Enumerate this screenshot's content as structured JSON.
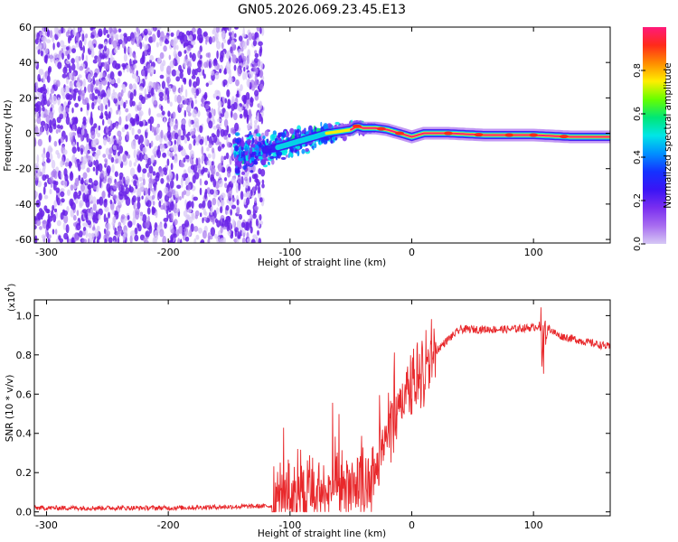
{
  "title": "GN05.2026.069.23.45.E13",
  "colors": {
    "snr_line": "#e8282b",
    "spectro_points": "#5a17e6",
    "colormap": [
      "#d6c8f5",
      "#a86df0",
      "#7a2ef0",
      "#3a14f5",
      "#1432ff",
      "#0090ff",
      "#00e6e6",
      "#00e676",
      "#66ff00",
      "#ffee00",
      "#ff8c00",
      "#ff2a1a",
      "#ff1a7a"
    ]
  },
  "chart_data": [
    {
      "type": "heatmap",
      "title": "GN05.2026.069.23.45.E13",
      "xlabel": "Height of straight line (km)",
      "ylabel": "Frequency (Hz)",
      "xlim": [
        -310,
        163
      ],
      "ylim": [
        -62,
        60
      ],
      "xticks": [
        -300,
        -200,
        -100,
        0,
        100
      ],
      "xtick_labels": [
        "-300",
        "-200",
        "-100",
        "0",
        "100"
      ],
      "yticks": [
        60,
        40,
        20,
        0,
        -20,
        -40,
        -60
      ],
      "ytick_labels": [
        "60",
        "40",
        "20",
        "0",
        "-20",
        "-40",
        "-60"
      ],
      "noise_region_x": [
        -310,
        -122
      ],
      "signal_trace": [
        {
          "x": -145,
          "f": -12
        },
        {
          "x": -125,
          "f": -10
        },
        {
          "x": -110,
          "f": -8
        },
        {
          "x": -100,
          "f": -6
        },
        {
          "x": -90,
          "f": -4
        },
        {
          "x": -80,
          "f": -2
        },
        {
          "x": -70,
          "f": 0
        },
        {
          "x": -60,
          "f": 1
        },
        {
          "x": -50,
          "f": 2
        },
        {
          "x": -45,
          "f": 4
        },
        {
          "x": -40,
          "f": 3
        },
        {
          "x": -30,
          "f": 3
        },
        {
          "x": -20,
          "f": 2
        },
        {
          "x": -10,
          "f": 0
        },
        {
          "x": 0,
          "f": -2
        },
        {
          "x": 10,
          "f": 0
        },
        {
          "x": 30,
          "f": 0
        },
        {
          "x": 60,
          "f": -1
        },
        {
          "x": 80,
          "f": -1
        },
        {
          "x": 100,
          "f": -1
        },
        {
          "x": 130,
          "f": -2
        },
        {
          "x": 163,
          "f": -2
        }
      ],
      "colorbar": {
        "label": "Normalized spectral amplitude",
        "range": [
          0,
          1
        ],
        "ticks": [
          0.0,
          0.2,
          0.4,
          0.6,
          0.8
        ],
        "tick_labels": [
          "0.0",
          "0.2",
          "0.4",
          "0.6",
          "0.8"
        ]
      }
    },
    {
      "type": "line",
      "xlabel": "Height of straight line (km)",
      "ylabel": "SNR (10 * v/v)",
      "yscale_label": "(x10",
      "yscale_exp": "4",
      "yscale_close": ")",
      "xlim": [
        -310,
        163
      ],
      "ylim": [
        -0.02,
        1.08
      ],
      "xticks": [
        -300,
        -200,
        -100,
        0,
        100
      ],
      "xtick_labels": [
        "-300",
        "-200",
        "-100",
        "0",
        "100"
      ],
      "yticks": [
        0.0,
        0.2,
        0.4,
        0.6,
        0.8,
        1.0
      ],
      "ytick_labels": [
        "0.0",
        "0.2",
        "0.4",
        "0.6",
        "0.8",
        "1.0"
      ],
      "series": [
        {
          "name": "SNR",
          "x": [
            -310,
            -200,
            -115,
            -105,
            -90,
            -75,
            -60,
            -50,
            -40,
            -35,
            -30,
            -20,
            -10,
            0,
            10,
            20,
            30,
            40,
            60,
            80,
            100,
            105,
            108,
            112,
            120,
            140,
            163
          ],
          "y": [
            0.02,
            0.02,
            0.03,
            0.06,
            0.07,
            0.09,
            0.12,
            0.14,
            0.12,
            0.06,
            0.2,
            0.42,
            0.52,
            0.62,
            0.72,
            0.82,
            0.88,
            0.93,
            0.93,
            0.93,
            0.94,
            0.95,
            0.8,
            0.94,
            0.9,
            0.87,
            0.84
          ]
        }
      ]
    }
  ]
}
